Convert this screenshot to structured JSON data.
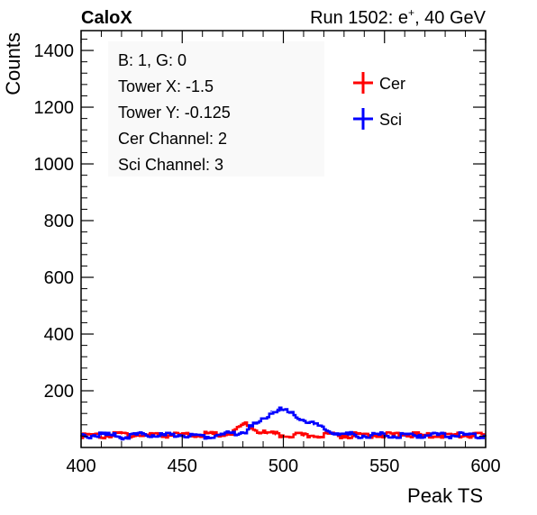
{
  "header": {
    "experiment": "CaloX",
    "run_prefix": "Run 1502: e",
    "run_sup": "+",
    "run_suffix": ", 40 GeV"
  },
  "info_box": {
    "lines": [
      "B: 1, G: 0",
      "Tower X: -1.5",
      "Tower Y: -0.125",
      "Cer Channel: 2",
      "Sci Channel: 3"
    ]
  },
  "chart_data": {
    "type": "line",
    "xlabel": "Peak TS",
    "ylabel": "Counts",
    "xlim": [
      400,
      600
    ],
    "ylim": [
      0,
      1470
    ],
    "x_ticks": [
      400,
      450,
      500,
      550,
      600
    ],
    "y_ticks": [
      200,
      400,
      600,
      800,
      1000,
      1200,
      1400
    ],
    "grid": false,
    "legend_position": "top-right",
    "series": [
      {
        "name": "Cer",
        "color": "#ff0000",
        "x": [
          400,
          410,
          420,
          430,
          440,
          450,
          460,
          470,
          475,
          478,
          481,
          484,
          488,
          492,
          496,
          500,
          505,
          510,
          520,
          530,
          540,
          550,
          560,
          570,
          580,
          590,
          600
        ],
        "values": [
          42,
          40,
          48,
          42,
          45,
          43,
          46,
          44,
          52,
          72,
          80,
          68,
          55,
          48,
          45,
          42,
          44,
          40,
          46,
          42,
          45,
          43,
          47,
          41,
          44,
          42,
          43
        ]
      },
      {
        "name": "Sci",
        "color": "#0000ff",
        "x": [
          400,
          410,
          420,
          430,
          440,
          450,
          460,
          470,
          475,
          480,
          485,
          490,
          494,
          497,
          500,
          505,
          510,
          515,
          520,
          525,
          530,
          540,
          550,
          560,
          570,
          580,
          590,
          600
        ],
        "values": [
          40,
          45,
          38,
          44,
          42,
          45,
          40,
          46,
          50,
          55,
          78,
          100,
          128,
          135,
          130,
          112,
          95,
          80,
          62,
          52,
          46,
          42,
          44,
          40,
          45,
          42,
          44,
          41
        ]
      }
    ]
  }
}
